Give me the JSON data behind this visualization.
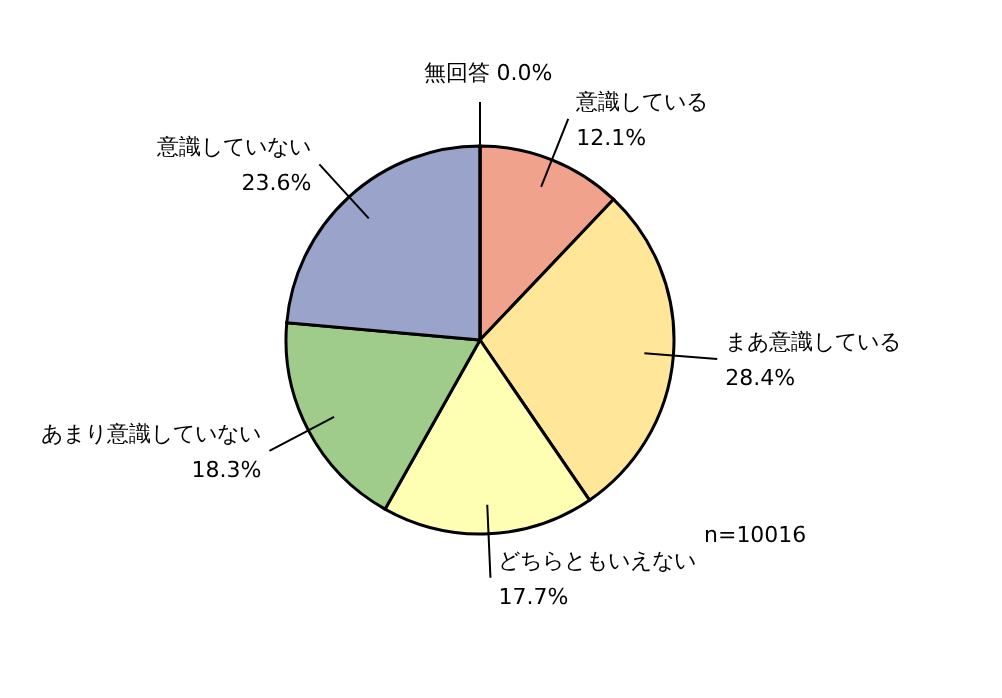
{
  "chart_data": {
    "type": "pie",
    "categories": [
      "意識している",
      "まあ意識している",
      "どちらともいえない",
      "あまり意識していない",
      "意識していない",
      "無回答"
    ],
    "values": [
      12.1,
      28.4,
      17.7,
      18.3,
      23.6,
      0.0
    ],
    "colors": [
      "#f0a28c",
      "#ffe699",
      "#ffffb3",
      "#9fcc8a",
      "#9aa3c9",
      "#cccccc"
    ],
    "value_labels": [
      "12.1%",
      "28.4%",
      "17.7%",
      "18.3%",
      "23.6%",
      "0.0%"
    ],
    "annotations": [
      "n=10016"
    ]
  }
}
